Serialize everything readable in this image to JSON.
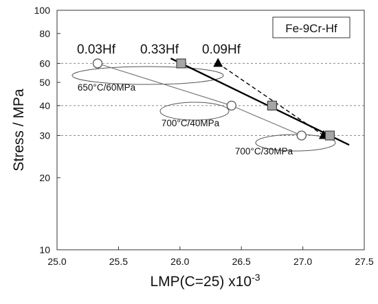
{
  "chart_data": {
    "type": "scatter",
    "title": "",
    "xlabel": "LMP(C=25) x10",
    "xlabel_exponent": "-3",
    "ylabel": "Stress / MPa",
    "x_range": [
      25.0,
      27.5
    ],
    "y_range": [
      10,
      100
    ],
    "y_scale": "log",
    "x_ticks": [
      "25.0",
      "25.5",
      "26.0",
      "26.5",
      "27.0",
      "27.5"
    ],
    "y_ticks": [
      {
        "value": 10,
        "label": "10"
      },
      {
        "value": 20,
        "label": "20"
      },
      {
        "value": 30,
        "label": "30"
      },
      {
        "value": 40,
        "label": "40"
      },
      {
        "value": 50,
        "label": "50"
      },
      {
        "value": 60,
        "label": "60"
      },
      {
        "value": 80,
        "label": "80"
      },
      {
        "value": 100,
        "label": "100"
      }
    ],
    "dashed_gridlines_at": [
      30,
      40,
      60
    ],
    "legend_box": "Fe-9Cr-Hf",
    "series": [
      {
        "name": "0.03Hf",
        "marker": "open-circle",
        "line_style": "thin-gray",
        "color": "#7a7a7a",
        "points": [
          {
            "x": 25.33,
            "y": 60
          },
          {
            "x": 26.42,
            "y": 40
          },
          {
            "x": 26.99,
            "y": 30
          }
        ]
      },
      {
        "name": "0.33Hf",
        "marker": "gray-square",
        "line_style": "thick-solid",
        "color": "#000000",
        "points": [
          {
            "x": 26.01,
            "y": 60
          },
          {
            "x": 26.75,
            "y": 40
          },
          {
            "x": 27.22,
            "y": 30
          }
        ]
      },
      {
        "name": "0.09Hf",
        "marker": "black-triangle",
        "line_style": "dashed",
        "color": "#000000",
        "points": [
          {
            "x": 26.31,
            "y": 60
          },
          {
            "x": 27.17,
            "y": 30
          }
        ]
      }
    ],
    "annotations": [
      "650°C/60MPa",
      "700°C/40MPa",
      "700°C/30MPa"
    ]
  }
}
